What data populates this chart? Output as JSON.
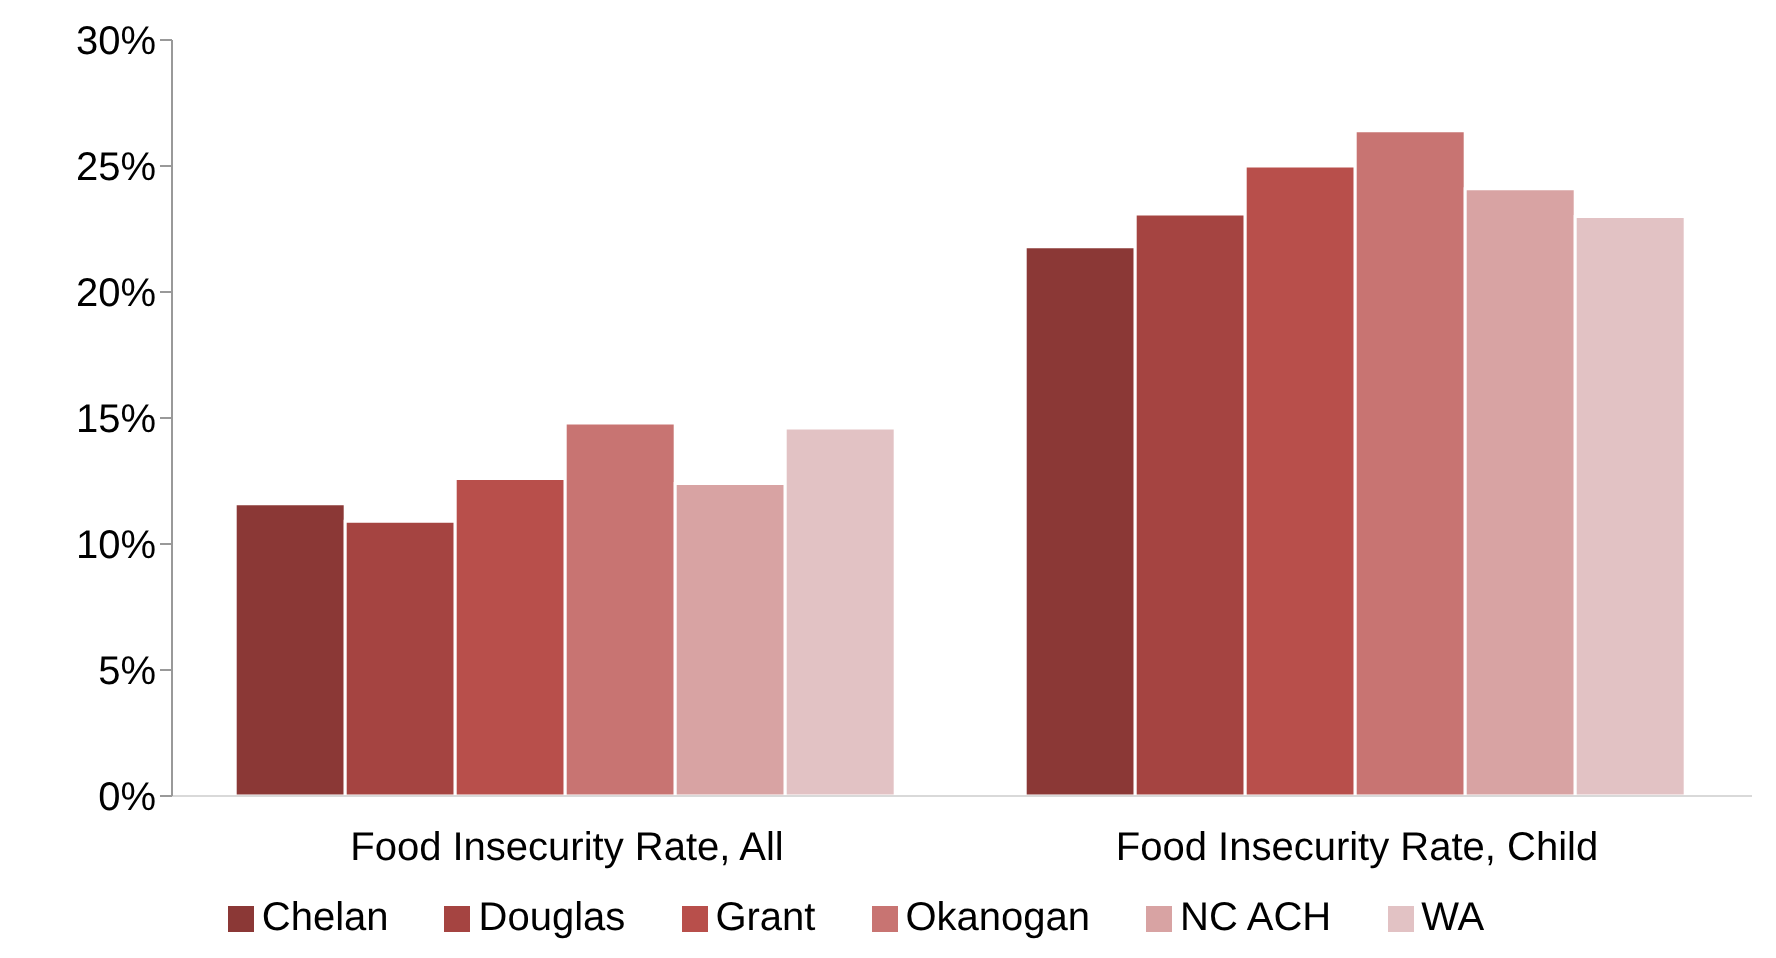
{
  "chart_data": {
    "type": "bar",
    "categories": [
      "Food Insecurity Rate, All",
      "Food Insecurity Rate, Child"
    ],
    "series": [
      {
        "name": "Chelan",
        "color": "#8b3836",
        "values": [
          11.6,
          21.8
        ]
      },
      {
        "name": "Douglas",
        "color": "#a54441",
        "values": [
          10.9,
          23.1
        ]
      },
      {
        "name": "Grant",
        "color": "#b84f4b",
        "values": [
          12.6,
          25.0
        ]
      },
      {
        "name": "Okanogan",
        "color": "#c87472",
        "values": [
          14.8,
          26.4
        ]
      },
      {
        "name": "NC ACH",
        "color": "#d8a3a3",
        "values": [
          12.4,
          24.1
        ]
      },
      {
        "name": "WA",
        "color": "#e2c2c4",
        "values": [
          14.6,
          23.0
        ]
      }
    ],
    "ylim": [
      0,
      30
    ],
    "yticks": [
      {
        "value": 0,
        "label": "0%"
      },
      {
        "value": 5,
        "label": "5%"
      },
      {
        "value": 10,
        "label": "10%"
      },
      {
        "value": 15,
        "label": "15%"
      },
      {
        "value": 20,
        "label": "20%"
      },
      {
        "value": 25,
        "label": "25%"
      },
      {
        "value": 30,
        "label": "30%"
      }
    ],
    "grid": false,
    "legend": "bottom"
  }
}
